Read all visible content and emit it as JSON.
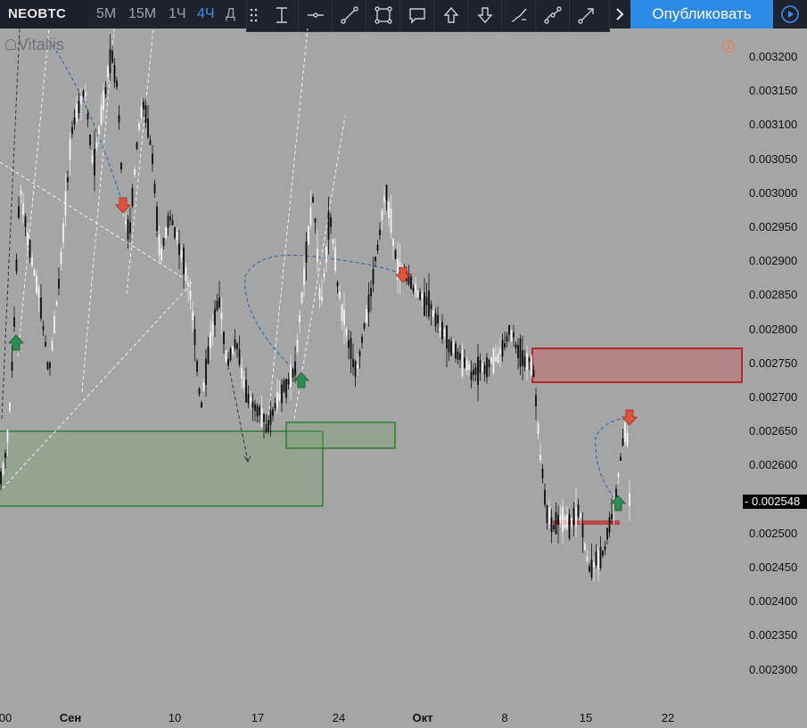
{
  "toolbar": {
    "symbol": "NEOBTC",
    "timeframes": [
      {
        "label": "5M",
        "active": false
      },
      {
        "label": "15M",
        "active": false
      },
      {
        "label": "1Ч",
        "active": false
      },
      {
        "label": "4Ч",
        "active": true
      },
      {
        "label": "Д",
        "active": false
      }
    ],
    "drawing_tools": [
      "vertical-line-icon",
      "horizontal-line-icon",
      "trend-line-icon",
      "rectangle-icon",
      "callout-icon",
      "arrow-up-icon",
      "arrow-down-icon",
      "brush-icon",
      "curve-icon",
      "arrow-line-icon"
    ],
    "publish_label": "Опубликовать",
    "accent": "#2b8ae6"
  },
  "chart": {
    "author": "Vitaliis",
    "warning_glyph": "!",
    "current_price": "0.002548",
    "y_labels": [
      "0.003200",
      "0.003150",
      "0.003100",
      "0.003050",
      "0.003000",
      "0.002950",
      "0.002900",
      "0.002850",
      "0.002800",
      "0.002750",
      "0.002700",
      "0.002650",
      "0.002600",
      "0.002550",
      "0.002500",
      "0.002450",
      "0.002400",
      "0.002350",
      "0.002300"
    ],
    "x_labels": [
      {
        "label": "00",
        "bold": false
      },
      {
        "label": "Сен",
        "bold": true
      },
      {
        "label": "10",
        "bold": false
      },
      {
        "label": "17",
        "bold": false
      },
      {
        "label": "24",
        "bold": false
      },
      {
        "label": "Окт",
        "bold": true
      },
      {
        "label": "8",
        "bold": false
      },
      {
        "label": "15",
        "bold": false
      },
      {
        "label": "22",
        "bold": false
      }
    ],
    "colors": {
      "background": "#a5a5a5",
      "demand_zone": "#2e7d32",
      "supply_zone": "#b71c1c",
      "arrow_up": "#2e8b57",
      "arrow_down": "#e0533d",
      "guide_line": "#2a5fb0"
    }
  }
}
